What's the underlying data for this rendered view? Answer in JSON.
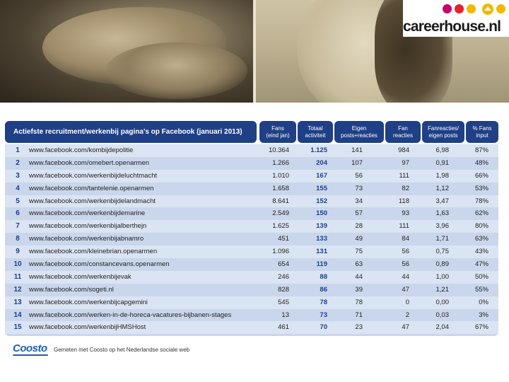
{
  "logo": {
    "brand": "careerhouse.nl",
    "dot_colors": [
      "#c7006b",
      "#e8202a",
      "#f0b800",
      "#f0b800"
    ]
  },
  "table": {
    "title": "Actiefste recruitment/werkenbij pagina's op Facebook (januari 2013)",
    "columns": [
      "Fans\n(eind jan)",
      "Totaal\nactiviteit",
      "Eigen\nposts+reacties",
      "Fan\nreacties",
      "Fanreacties/\neigen posts",
      "% Fans\ninput"
    ],
    "rows": [
      {
        "rank": "1",
        "url": "www.facebook.com/kombijdepolitie",
        "fans": "10.364",
        "total": "1.125",
        "own": "141",
        "fan_reactions": "984",
        "ratio": "6,98",
        "pct": "87%"
      },
      {
        "rank": "2",
        "url": "www.facebook.com/omebert.openarmen",
        "fans": "1.266",
        "total": "204",
        "own": "107",
        "fan_reactions": "97",
        "ratio": "0,91",
        "pct": "48%"
      },
      {
        "rank": "3",
        "url": "www.facebook.com/werkenbijdeluchtmacht",
        "fans": "1.010",
        "total": "167",
        "own": "56",
        "fan_reactions": "111",
        "ratio": "1,98",
        "pct": "66%"
      },
      {
        "rank": "4",
        "url": "www.facebook.com/tantelenie.openarmen",
        "fans": "1.658",
        "total": "155",
        "own": "73",
        "fan_reactions": "82",
        "ratio": "1,12",
        "pct": "53%"
      },
      {
        "rank": "5",
        "url": "www.facebook.com/werkenbijdelandmacht",
        "fans": "8.641",
        "total": "152",
        "own": "34",
        "fan_reactions": "118",
        "ratio": "3,47",
        "pct": "78%"
      },
      {
        "rank": "6",
        "url": "www.facebook.com/werkenbijdemarine",
        "fans": "2.549",
        "total": "150",
        "own": "57",
        "fan_reactions": "93",
        "ratio": "1,63",
        "pct": "62%"
      },
      {
        "rank": "7",
        "url": "www.facebook.com/werkenbijalberthejn",
        "fans": "1.625",
        "total": "139",
        "own": "28",
        "fan_reactions": "111",
        "ratio": "3,96",
        "pct": "80%"
      },
      {
        "rank": "8",
        "url": "www.facebook.com/werkenbijabnamro",
        "fans": "451",
        "total": "133",
        "own": "49",
        "fan_reactions": "84",
        "ratio": "1,71",
        "pct": "63%"
      },
      {
        "rank": "9",
        "url": "www.facebook.com/kleinebrian.openarmen",
        "fans": "1.096",
        "total": "131",
        "own": "75",
        "fan_reactions": "56",
        "ratio": "0,75",
        "pct": "43%"
      },
      {
        "rank": "10",
        "url": "www.facebook.com/constancevans.openarmen",
        "fans": "654",
        "total": "119",
        "own": "63",
        "fan_reactions": "56",
        "ratio": "0,89",
        "pct": "47%"
      },
      {
        "rank": "11",
        "url": "www.facebook.com/werkenbijevak",
        "fans": "246",
        "total": "88",
        "own": "44",
        "fan_reactions": "44",
        "ratio": "1,00",
        "pct": "50%"
      },
      {
        "rank": "12",
        "url": "www.facebook.com/sogeti.nl",
        "fans": "828",
        "total": "86",
        "own": "39",
        "fan_reactions": "47",
        "ratio": "1,21",
        "pct": "55%"
      },
      {
        "rank": "13",
        "url": "www.facebook.com/werkenbijcapgemini",
        "fans": "545",
        "total": "78",
        "own": "78",
        "fan_reactions": "0",
        "ratio": "0,00",
        "pct": "0%"
      },
      {
        "rank": "14",
        "url": "www.facebook.com/werken-in-de-horeca-vacatures-bijbanen-stages",
        "fans": "13",
        "total": "73",
        "own": "71",
        "fan_reactions": "2",
        "ratio": "0,03",
        "pct": "3%"
      },
      {
        "rank": "15",
        "url": "www.facebook.com/werkenbijHMSHost",
        "fans": "461",
        "total": "70",
        "own": "23",
        "fan_reactions": "47",
        "ratio": "2,04",
        "pct": "67%"
      }
    ]
  },
  "footer": {
    "brand": "Coosto",
    "text": "Gemeten met Coosto op het Nederlandse sociale web"
  }
}
